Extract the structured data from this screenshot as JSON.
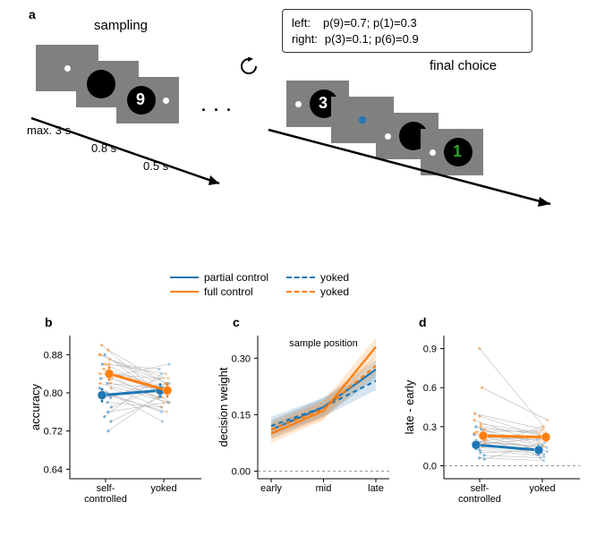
{
  "colors": {
    "partial": "#1f77b4",
    "full": "#ff7f0e",
    "grey_tile": "#808080",
    "green_digit": "#2ca02c",
    "blue_dot": "#1f77b4"
  },
  "panel_labels": {
    "a": "a",
    "b": "b",
    "c": "c",
    "d": "d"
  },
  "panel_a": {
    "sampling_label": "sampling",
    "final_label": "final choice",
    "info_lines": {
      "left": "left:",
      "left_p": "p(9)=0.7; p(1)=0.3",
      "right": "right:",
      "right_p": "p(3)=0.1; p(6)=0.9"
    },
    "timing": {
      "max3s": "max. 3 s",
      "t08": "0.8 s",
      "t05": "0.5 s"
    },
    "digits": {
      "nine": "9",
      "three": "3",
      "one": "1"
    },
    "ellipsis": ". . ."
  },
  "legend": {
    "items": [
      {
        "label": "partial control",
        "color": "#1f77b4",
        "dashed": false
      },
      {
        "label": "yoked",
        "color": "#1f77b4",
        "dashed": true
      },
      {
        "label": "full control",
        "color": "#ff7f0e",
        "dashed": false
      },
      {
        "label": "yoked",
        "color": "#ff7f0e",
        "dashed": true
      }
    ]
  },
  "panel_b": {
    "ylabel": "accuracy",
    "yticks": [
      0.64,
      0.72,
      0.8,
      0.88
    ],
    "ylim": [
      0.62,
      0.92
    ],
    "xcats": [
      "self-\ncontrolled",
      "yoked"
    ],
    "means": {
      "partial": [
        0.795,
        0.805
      ],
      "full": [
        0.84,
        0.805
      ]
    },
    "err": {
      "partial": [
        0.015,
        0.015
      ],
      "full": [
        0.015,
        0.015
      ]
    },
    "jitter_partial": [
      [
        0.79,
        0.83
      ],
      [
        0.72,
        0.8
      ],
      [
        0.88,
        0.78
      ],
      [
        0.83,
        0.86
      ],
      [
        0.77,
        0.82
      ],
      [
        0.81,
        0.74
      ],
      [
        0.74,
        0.79
      ],
      [
        0.86,
        0.85
      ],
      [
        0.78,
        0.77
      ],
      [
        0.82,
        0.81
      ],
      [
        0.75,
        0.84
      ],
      [
        0.8,
        0.76
      ],
      [
        0.84,
        0.8
      ],
      [
        0.76,
        0.78
      ],
      [
        0.79,
        0.82
      ]
    ],
    "jitter_full": [
      [
        0.88,
        0.82
      ],
      [
        0.82,
        0.79
      ],
      [
        0.86,
        0.84
      ],
      [
        0.9,
        0.8
      ],
      [
        0.84,
        0.78
      ],
      [
        0.87,
        0.83
      ],
      [
        0.8,
        0.76
      ],
      [
        0.85,
        0.81
      ],
      [
        0.83,
        0.79
      ],
      [
        0.89,
        0.82
      ],
      [
        0.81,
        0.77
      ],
      [
        0.86,
        0.8
      ],
      [
        0.84,
        0.83
      ],
      [
        0.82,
        0.78
      ],
      [
        0.88,
        0.81
      ]
    ]
  },
  "panel_c": {
    "ylabel": "decision weight",
    "title": "sample position",
    "yticks": [
      0.0,
      0.15,
      0.3
    ],
    "ylim": [
      -0.02,
      0.36
    ],
    "xcats": [
      "early",
      "mid",
      "late"
    ],
    "lines": {
      "partial_solid": [
        0.11,
        0.17,
        0.27
      ],
      "partial_dashed": [
        0.12,
        0.17,
        0.24
      ],
      "full_solid": [
        0.1,
        0.16,
        0.33
      ],
      "full_dashed": [
        0.11,
        0.165,
        0.28
      ]
    },
    "band_width": 0.025
  },
  "panel_d": {
    "ylabel": "late - early",
    "yticks": [
      0.0,
      0.3,
      0.6,
      0.9
    ],
    "ylim": [
      -0.1,
      1.0
    ],
    "xcats": [
      "self-\ncontrolled",
      "yoked"
    ],
    "means": {
      "partial": [
        0.16,
        0.12
      ],
      "full": [
        0.23,
        0.22
      ]
    },
    "err": {
      "partial": [
        0.04,
        0.04
      ],
      "full": [
        0.04,
        0.04
      ]
    },
    "jitter_partial": [
      [
        0.12,
        0.08
      ],
      [
        0.25,
        0.15
      ],
      [
        0.05,
        0.18
      ],
      [
        0.3,
        0.1
      ],
      [
        0.18,
        0.14
      ],
      [
        0.08,
        0.06
      ],
      [
        0.22,
        0.2
      ],
      [
        0.14,
        0.09
      ],
      [
        0.28,
        0.16
      ],
      [
        0.1,
        0.12
      ],
      [
        0.2,
        0.07
      ],
      [
        0.16,
        0.13
      ],
      [
        0.24,
        0.11
      ],
      [
        0.06,
        0.04
      ],
      [
        0.19,
        0.15
      ]
    ],
    "jitter_full": [
      [
        0.28,
        0.25
      ],
      [
        0.15,
        0.3
      ],
      [
        0.35,
        0.18
      ],
      [
        0.2,
        0.22
      ],
      [
        0.4,
        0.28
      ],
      [
        0.18,
        0.15
      ],
      [
        0.3,
        0.24
      ],
      [
        0.22,
        0.2
      ],
      [
        0.6,
        0.35
      ],
      [
        0.25,
        0.19
      ],
      [
        0.32,
        0.26
      ],
      [
        0.17,
        0.21
      ],
      [
        0.38,
        0.23
      ],
      [
        0.9,
        0.3
      ],
      [
        0.26,
        0.27
      ]
    ]
  }
}
